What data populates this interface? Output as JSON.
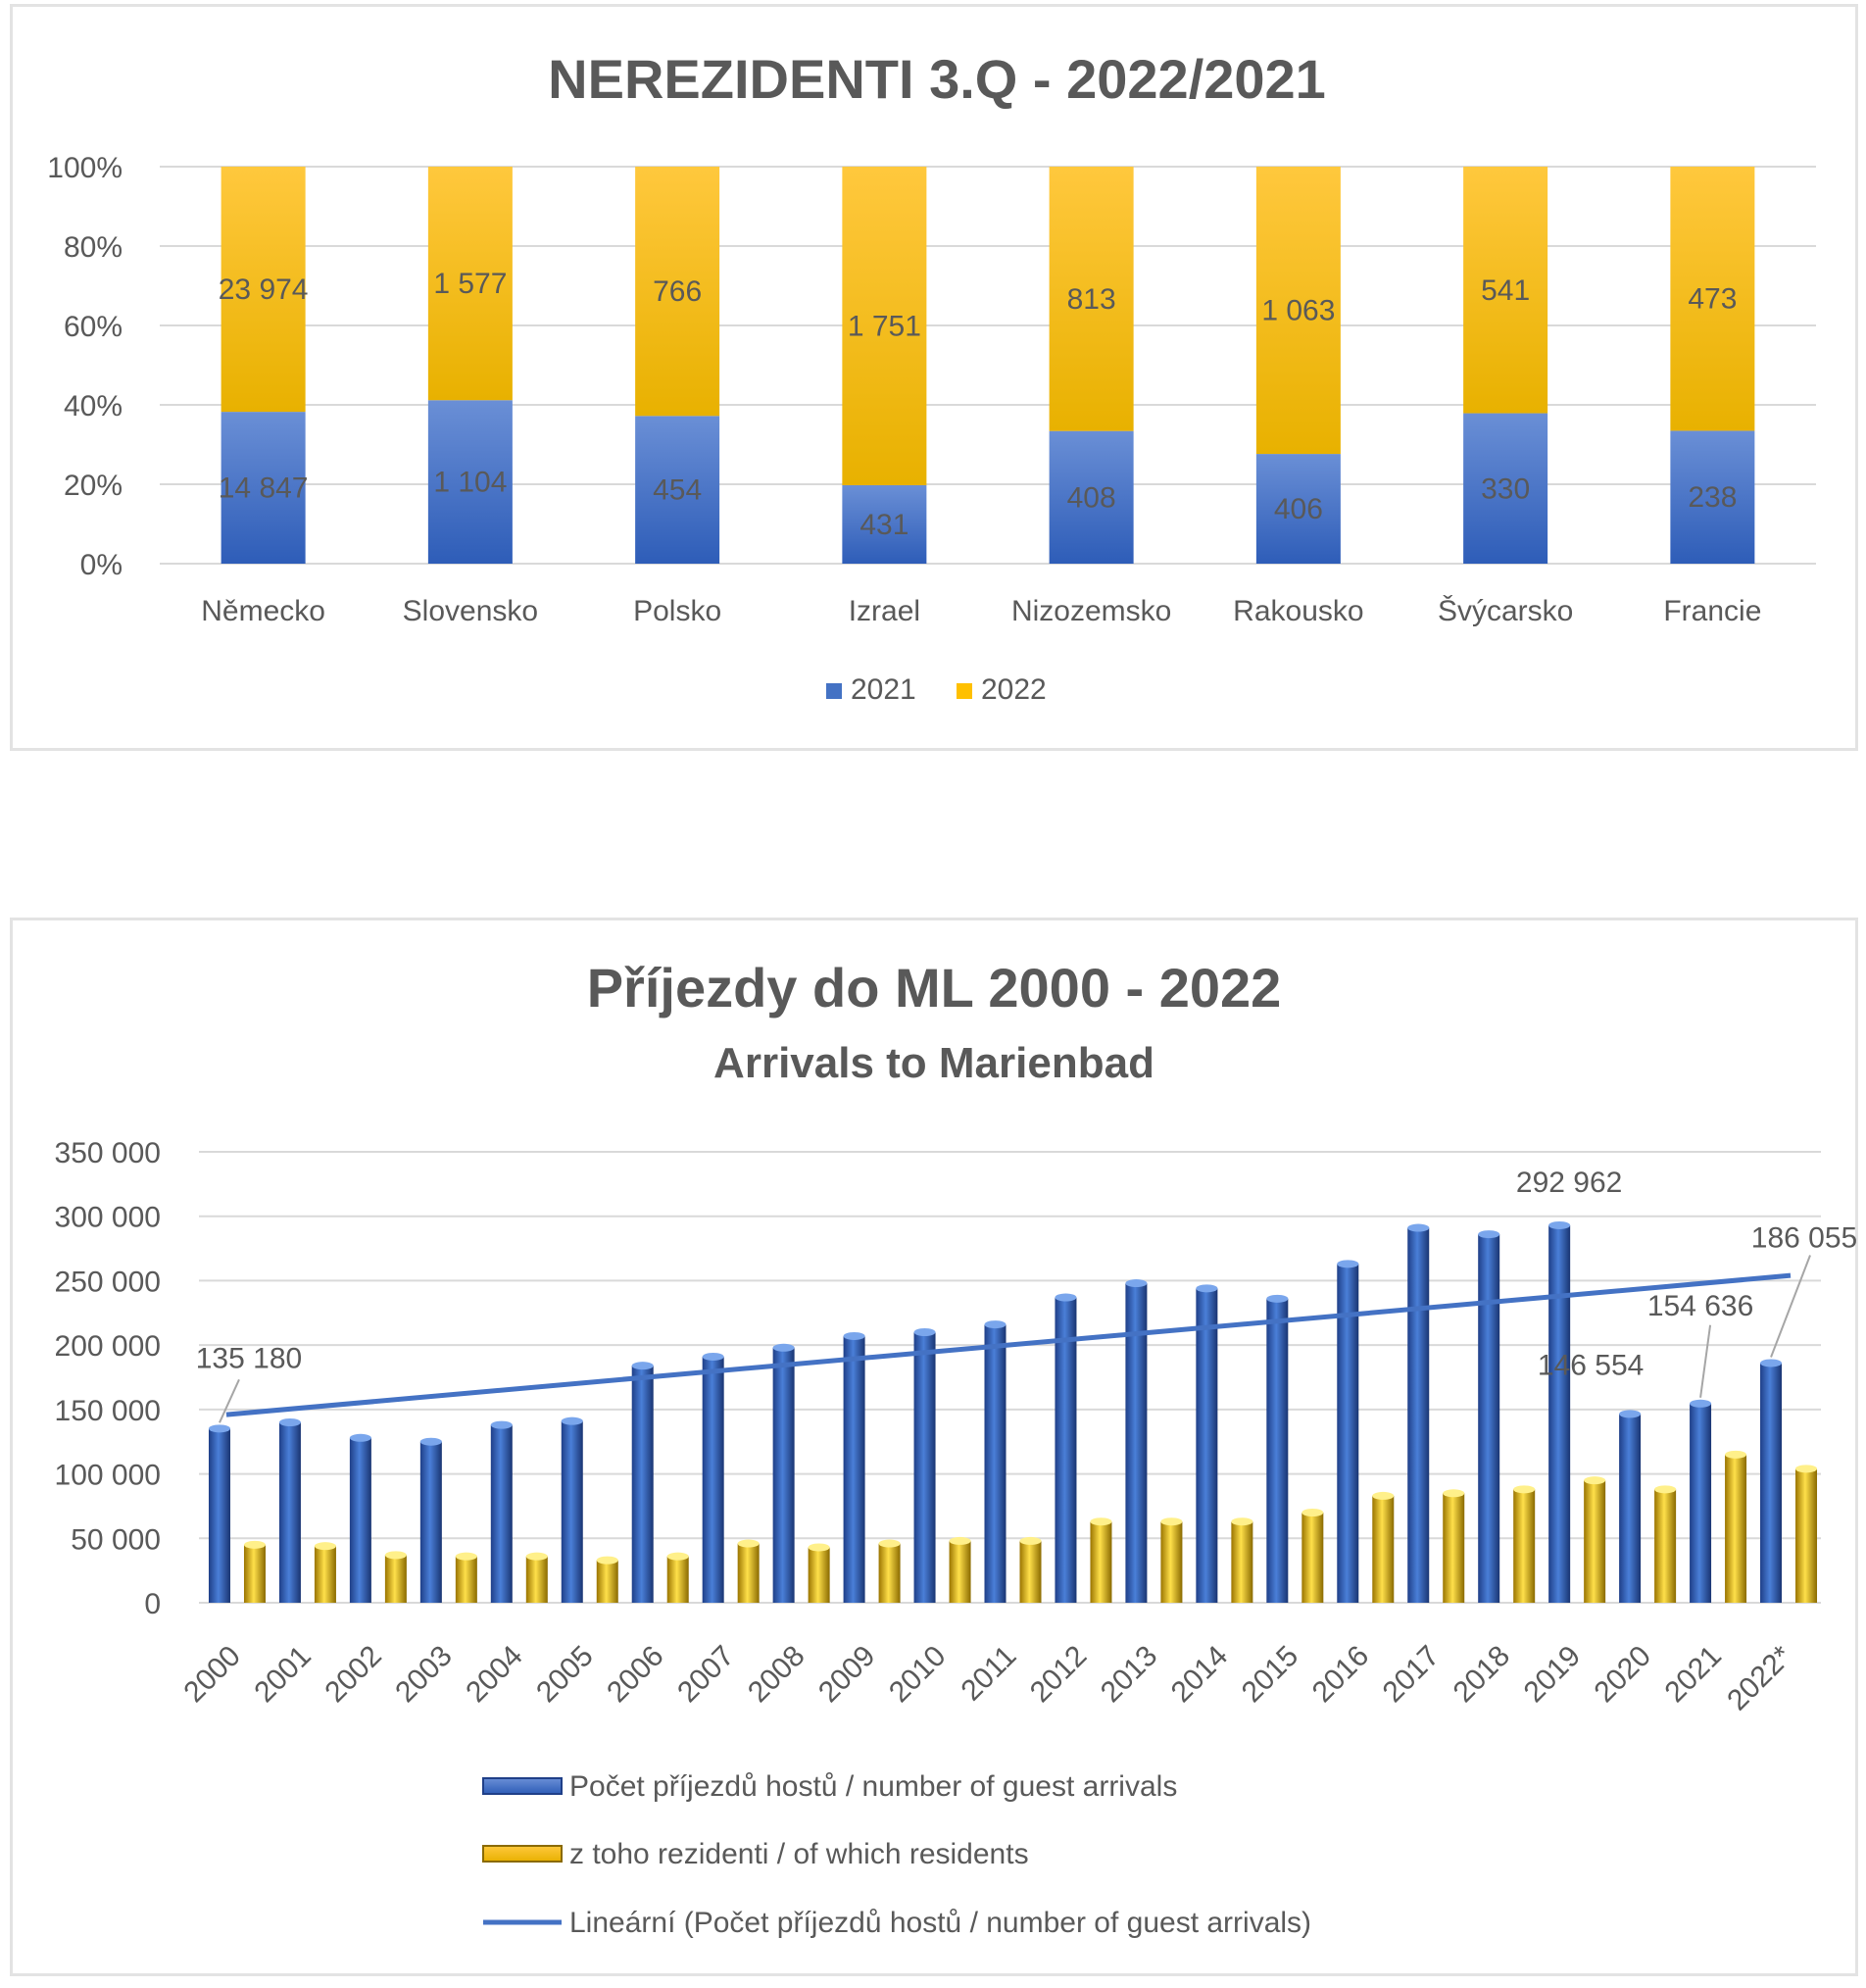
{
  "chart_data": [
    {
      "type": "bar",
      "stacked": "percent",
      "title": "NEREZIDENTI 3.Q - 2022/2021",
      "categories": [
        "Německo",
        "Slovensko",
        "Polsko",
        "Izrael",
        "Nizozemsko",
        "Rakousko",
        "Švýcarsko",
        "Francie"
      ],
      "series": [
        {
          "name": "2021",
          "values": [
            14847,
            1104,
            454,
            431,
            408,
            406,
            330,
            238
          ],
          "labels": [
            "14 847",
            "1 104",
            "454",
            "431",
            "408",
            "406",
            "330",
            "238"
          ],
          "color": "#4472c4"
        },
        {
          "name": "2022",
          "values": [
            23974,
            1577,
            766,
            1751,
            813,
            1063,
            541,
            473
          ],
          "labels": [
            "23 974",
            "1 577",
            "766",
            "1 751",
            "813",
            "1 063",
            "541",
            "473"
          ],
          "color": "#ffc000"
        }
      ],
      "y_ticks": [
        "0%",
        "20%",
        "40%",
        "60%",
        "80%",
        "100%"
      ],
      "ylim": [
        0,
        100
      ],
      "grid": true,
      "legend": "bottom"
    },
    {
      "type": "bar",
      "title": "Příjezdy do ML 2000 - 2022",
      "subtitle": "Arrivals to Marienbad",
      "categories": [
        "2000",
        "2001",
        "2002",
        "2003",
        "2004",
        "2005",
        "2006",
        "2007",
        "2008",
        "2009",
        "2010",
        "2011",
        "2012",
        "2013",
        "2014",
        "2015",
        "2016",
        "2017",
        "2018",
        "2019",
        "2020",
        "2021",
        "2022*"
      ],
      "series": [
        {
          "name": "Počet příjezdů hostů / number of guest arrivals",
          "values": [
            135180,
            140000,
            128000,
            125000,
            138000,
            141000,
            184000,
            191000,
            198000,
            207000,
            210000,
            216000,
            237000,
            248000,
            244000,
            236000,
            263000,
            291000,
            286000,
            292962,
            146554,
            154636,
            186055
          ],
          "color": "#4472c4"
        },
        {
          "name": "z toho rezidenti / of which residents",
          "values": [
            45000,
            44000,
            37000,
            36000,
            36000,
            33000,
            36000,
            46000,
            43000,
            46000,
            48000,
            48000,
            63000,
            63000,
            63000,
            70000,
            83000,
            85000,
            88000,
            95000,
            88000,
            115000,
            104000
          ],
          "color": "#ffc000"
        }
      ],
      "trendline": {
        "name": "Lineární (Počet příjezdů hostů / number of guest arrivals)",
        "start": 146000,
        "end": 254000,
        "color": "#4472c4"
      },
      "annotations": [
        {
          "category": "2000",
          "text": "135 180"
        },
        {
          "category": "2019",
          "text": "292 962"
        },
        {
          "category": "2020",
          "text": "146 554"
        },
        {
          "category": "2021",
          "text": "154 636"
        },
        {
          "category": "2022*",
          "text": "186 055"
        }
      ],
      "y_ticks": [
        "0",
        "50 000",
        "100 000",
        "150 000",
        "200 000",
        "250 000",
        "300 000",
        "350 000"
      ],
      "ylim": [
        0,
        350000
      ],
      "grid": true,
      "legend": "bottom"
    }
  ]
}
